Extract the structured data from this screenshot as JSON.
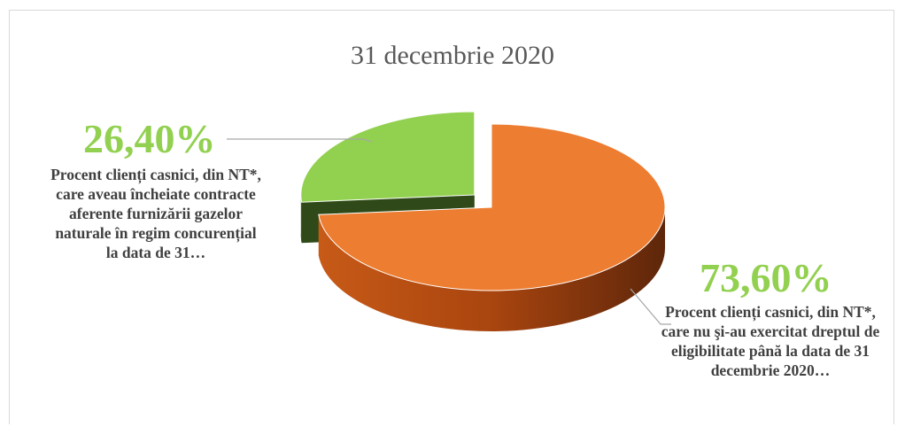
{
  "chart_data": {
    "type": "pie",
    "title": "31 decembrie 2020",
    "slices": [
      {
        "value_label": "73,60%",
        "value": 73.6,
        "label": "Procent clienți casnici, din NT*, care nu şi-au exercitat dreptul de eligibilitate până la data de 31 decembrie 2020…",
        "color": "#ed7d31"
      },
      {
        "value_label": "26,40%",
        "value": 26.4,
        "label": "Procent clienți casnici, din NT*, care aveau încheiate contracte aferente furnizării gazelor naturale în regim concurențial  la data de 31…",
        "color": "#92d050"
      }
    ]
  }
}
